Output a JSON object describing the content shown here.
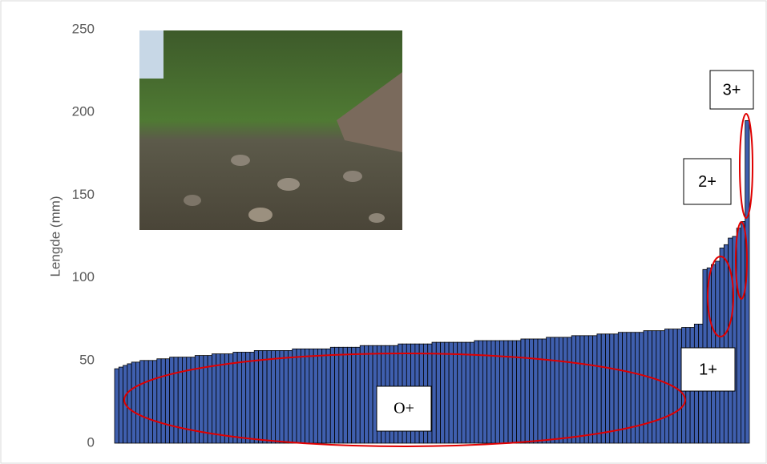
{
  "chart_data": {
    "type": "bar",
    "y_label": "Lengde (mm)",
    "values": [
      45,
      46,
      47,
      48,
      49,
      49,
      50,
      50,
      50,
      50,
      51,
      51,
      51,
      52,
      52,
      52,
      52,
      52,
      52,
      53,
      53,
      53,
      53,
      54,
      54,
      54,
      54,
      54,
      55,
      55,
      55,
      55,
      55,
      56,
      56,
      56,
      56,
      56,
      56,
      56,
      56,
      56,
      57,
      57,
      57,
      57,
      57,
      57,
      57,
      57,
      57,
      58,
      58,
      58,
      58,
      58,
      58,
      58,
      59,
      59,
      59,
      59,
      59,
      59,
      59,
      59,
      59,
      60,
      60,
      60,
      60,
      60,
      60,
      60,
      60,
      61,
      61,
      61,
      61,
      61,
      61,
      61,
      61,
      61,
      61,
      62,
      62,
      62,
      62,
      62,
      62,
      62,
      62,
      62,
      62,
      62,
      63,
      63,
      63,
      63,
      63,
      63,
      64,
      64,
      64,
      64,
      64,
      64,
      65,
      65,
      65,
      65,
      65,
      65,
      66,
      66,
      66,
      66,
      66,
      67,
      67,
      67,
      67,
      67,
      67,
      68,
      68,
      68,
      68,
      68,
      69,
      69,
      69,
      69,
      70,
      70,
      70,
      72,
      72,
      105,
      106,
      108,
      110,
      118,
      120,
      124,
      125,
      130,
      134,
      195
    ],
    "color": "#3f5fae",
    "ylim": [
      0,
      250
    ],
    "yticks": [
      0,
      50,
      100,
      150,
      200,
      250
    ],
    "grid": false,
    "annotations": [
      "3+",
      "2+",
      "1+",
      "O+"
    ]
  }
}
